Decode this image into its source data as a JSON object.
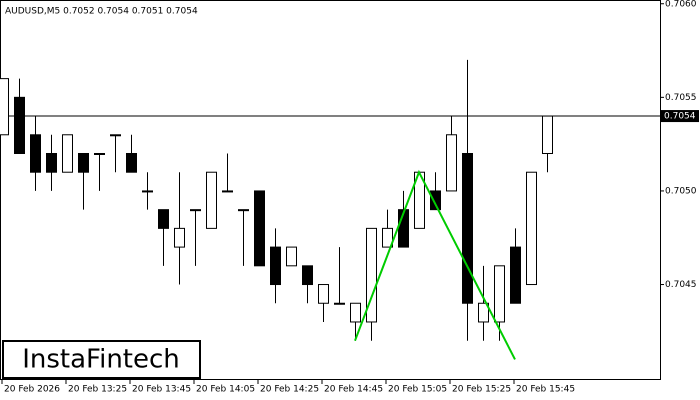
{
  "chart_data": {
    "type": "candlestick",
    "title": "AUDUSD,M5  0.7052 0.7054 0.7051 0.7054",
    "categories": [
      "20 Feb 2026",
      null,
      null,
      null,
      "20 Feb 13:25",
      null,
      null,
      null,
      "20 Feb 13:45",
      null,
      null,
      null,
      "20 Feb 14:05",
      null,
      null,
      null,
      "20 Feb 14:25",
      null,
      null,
      null,
      "20 Feb 14:45",
      null,
      null,
      null,
      "20 Feb 15:05",
      null,
      null,
      null,
      "20 Feb 15:25",
      null,
      null,
      null,
      "20 Feb 15:45",
      null,
      null
    ],
    "open": [
      0.7053,
      0.7055,
      0.7053,
      0.7052,
      0.7051,
      0.7052,
      0.7052,
      0.7053,
      0.7052,
      0.705,
      0.7049,
      0.7047,
      0.7049,
      0.7048,
      0.705,
      0.7049,
      0.705,
      0.7047,
      0.7046,
      0.7046,
      0.7044,
      0.7044,
      0.7043,
      0.7043,
      0.7047,
      0.7049,
      0.7048,
      0.705,
      0.705,
      0.7052,
      0.7043,
      0.7043,
      0.7047,
      0.7045,
      0.7052
    ],
    "high": [
      0.7056,
      0.7056,
      0.7054,
      0.7053,
      0.7053,
      0.7052,
      0.7052,
      0.7053,
      0.7053,
      0.7051,
      0.7049,
      0.7051,
      0.7049,
      0.7051,
      0.7052,
      0.7049,
      0.705,
      0.7048,
      0.7047,
      0.7046,
      0.7045,
      0.7047,
      0.7044,
      0.7048,
      0.7049,
      0.705,
      0.7051,
      0.7051,
      0.7054,
      0.7057,
      0.7046,
      0.7046,
      0.7048,
      0.7051,
      0.7054
    ],
    "low": [
      0.7053,
      0.7052,
      0.705,
      0.705,
      0.7051,
      0.7049,
      0.705,
      0.7051,
      0.7051,
      0.7049,
      0.7046,
      0.7045,
      0.7046,
      0.7048,
      0.705,
      0.7046,
      0.7046,
      0.7044,
      0.7046,
      0.7044,
      0.7043,
      0.7044,
      0.7042,
      0.7042,
      0.7047,
      0.7047,
      0.7048,
      0.7049,
      0.705,
      0.7042,
      0.7042,
      0.7042,
      0.7044,
      0.7045,
      0.7051
    ],
    "close": [
      0.7056,
      0.7052,
      0.7051,
      0.7051,
      0.7053,
      0.7051,
      0.7052,
      0.7053,
      0.7051,
      0.705,
      0.7048,
      0.7048,
      0.7049,
      0.7051,
      0.705,
      0.7049,
      0.7046,
      0.7045,
      0.7047,
      0.7045,
      0.7045,
      0.7044,
      0.7044,
      0.7048,
      0.7048,
      0.7047,
      0.7051,
      0.7049,
      0.7053,
      0.7044,
      0.7044,
      0.7046,
      0.7044,
      0.7051,
      0.7054
    ],
    "pattern": {
      "color": "#00cc00",
      "x": [
        22,
        26,
        32
      ],
      "values": [
        0.7042,
        0.7051,
        0.7041
      ]
    },
    "last_price": {
      "value": 0.7054,
      "label": "0.7054"
    },
    "ylim": [
      0.70399,
      0.70602
    ],
    "yticks": [
      0.7045,
      {
        "value": 0.705,
        "label": "0.7050"
      },
      0.7055,
      {
        "value": 0.706,
        "label": "0.7060"
      }
    ],
    "brand": "InstaFintech"
  }
}
